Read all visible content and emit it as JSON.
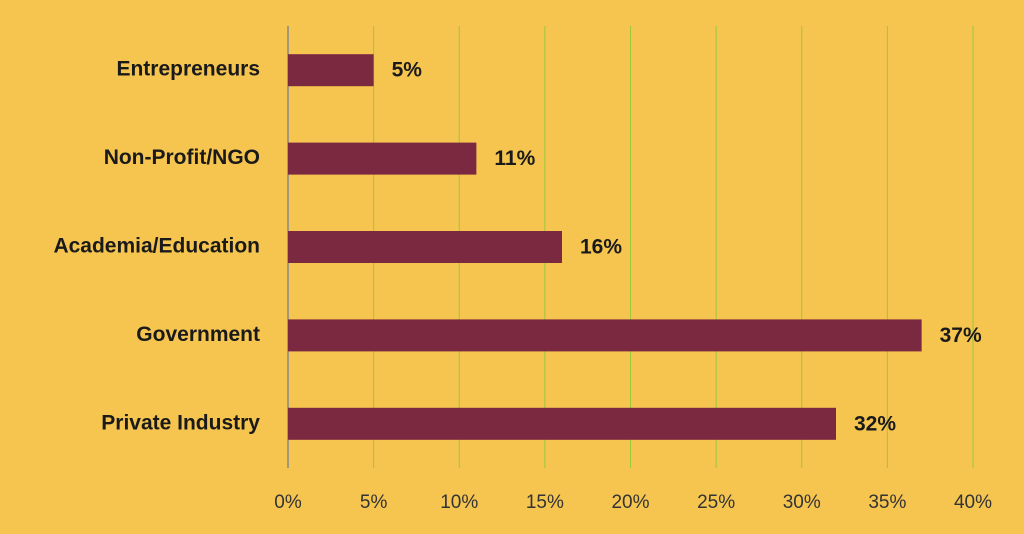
{
  "chart_data": {
    "type": "bar",
    "orientation": "horizontal",
    "categories": [
      "Entrepreneurs",
      "Non-Profit/NGO",
      "Academia/Education",
      "Government",
      "Private Industry"
    ],
    "values": [
      5,
      11,
      16,
      37,
      32
    ],
    "value_labels": [
      "5%",
      "11%",
      "16%",
      "37%",
      "32%"
    ],
    "color": "#7b2841",
    "xlim": [
      0,
      40
    ],
    "xticks": [
      {
        "value": 0,
        "label": "0%"
      },
      {
        "value": 5,
        "label": "5%"
      },
      {
        "value": 10,
        "label": "10%"
      },
      {
        "value": 15,
        "label": "15%"
      },
      {
        "value": 20,
        "label": "20%"
      },
      {
        "value": 25,
        "label": "25%"
      },
      {
        "value": 30,
        "label": "30%"
      },
      {
        "value": 35,
        "label": "35%"
      },
      {
        "value": 40,
        "label": "40%"
      }
    ],
    "grid": true
  }
}
